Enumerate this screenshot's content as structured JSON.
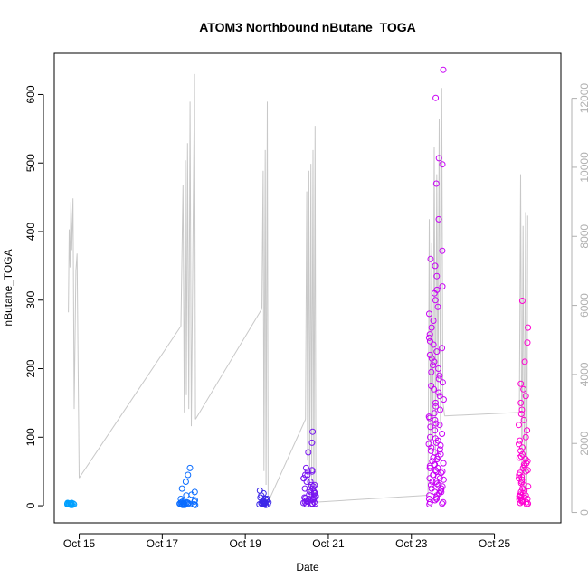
{
  "chart_data": {
    "type": "scatter",
    "title": "ATOM3 Northbound nButane_TOGA",
    "xlabel": "Date",
    "ylabel": "nButane_TOGA",
    "x_ticks": [
      {
        "label": "Oct 15",
        "day": 15
      },
      {
        "label": "Oct 17",
        "day": 17
      },
      {
        "label": "Oct 19",
        "day": 19
      },
      {
        "label": "Oct 21",
        "day": 21
      },
      {
        "label": "Oct 23",
        "day": 23
      },
      {
        "label": "Oct 25",
        "day": 25
      }
    ],
    "xlim": [
      14.4,
      26.6
    ],
    "ylim": [
      -25,
      660
    ],
    "y_ticks": [
      0,
      100,
      200,
      300,
      400,
      500,
      600
    ],
    "y2_ticks": [
      0,
      2000,
      4000,
      6000,
      8000,
      10000,
      12000
    ],
    "y2lim": [
      -300,
      13300
    ],
    "grid": false,
    "secondary_series": {
      "name": "",
      "color": "#c8c8c8",
      "segments": [
        {
          "x": [
            14.74,
            14.76,
            14.78,
            14.8,
            14.82,
            14.85,
            14.88,
            14.92,
            14.95,
            15.0
          ],
          "y": [
            5800,
            8200,
            7100,
            9000,
            7600,
            9100,
            3000,
            7000,
            7500,
            1000
          ]
        },
        {
          "x": [
            15.0,
            17.45
          ],
          "y": [
            1000,
            5400
          ]
        },
        {
          "x": [
            17.45,
            17.5,
            17.53,
            17.56,
            17.58,
            17.61,
            17.64,
            17.67,
            17.7,
            17.74,
            17.78,
            17.8
          ],
          "y": [
            5400,
            9500,
            2900,
            10200,
            3400,
            10700,
            3000,
            11900,
            2500,
            7800,
            12700,
            2700
          ]
        },
        {
          "x": [
            17.8,
            19.4
          ],
          "y": [
            2700,
            5900
          ]
        },
        {
          "x": [
            19.4,
            19.43,
            19.45,
            19.48,
            19.5,
            19.53,
            19.55
          ],
          "y": [
            5900,
            9900,
            1200,
            10500,
            800,
            11900,
            300
          ]
        },
        {
          "x": [
            19.55,
            20.45
          ],
          "y": [
            300,
            2700
          ]
        },
        {
          "x": [
            20.45,
            20.48,
            20.5,
            20.53,
            20.55,
            20.58,
            20.6,
            20.63,
            20.65,
            20.68,
            20.7
          ],
          "y": [
            2700,
            9300,
            1500,
            9900,
            400,
            10100,
            900,
            10500,
            400,
            11200,
            300
          ]
        },
        {
          "x": [
            20.7,
            23.4
          ],
          "y": [
            300,
            500
          ]
        },
        {
          "x": [
            23.4,
            23.43,
            23.46,
            23.49,
            23.52,
            23.55,
            23.58,
            23.61,
            23.64,
            23.67,
            23.7,
            23.73,
            23.76,
            23.8
          ],
          "y": [
            500,
            8500,
            1800,
            7800,
            2200,
            10600,
            1600,
            9800,
            3000,
            11400,
            2400,
            12300,
            3200,
            2800
          ]
        },
        {
          "x": [
            23.8,
            25.6
          ],
          "y": [
            2800,
            2900
          ]
        },
        {
          "x": [
            25.6,
            25.63,
            25.66,
            25.69,
            25.72,
            25.75,
            25.78,
            25.8
          ],
          "y": [
            2900,
            9800,
            800,
            8300,
            600,
            8700,
            400,
            8600
          ]
        }
      ]
    },
    "primary_series": {
      "name": "",
      "color_start": "#1e90ff",
      "color_end": "#ff00cc",
      "clusters": [
        {
          "day": 14.8,
          "spread": 0.1,
          "color": "#00a0ff",
          "points": [
            3,
            2,
            4,
            3,
            2,
            1,
            3,
            2,
            4,
            3,
            2,
            3,
            1,
            2,
            3
          ]
        },
        {
          "day": 17.6,
          "spread": 0.2,
          "color": "#0a6cff",
          "points": [
            1,
            2,
            3,
            4,
            5,
            2,
            3,
            6,
            8,
            10,
            15,
            20,
            25,
            35,
            45,
            55,
            3,
            2,
            1,
            4,
            6,
            2,
            3,
            5,
            16,
            2,
            1,
            3,
            2,
            4
          ]
        },
        {
          "day": 19.45,
          "spread": 0.12,
          "color": "#3c28e8",
          "points": [
            2,
            3,
            4,
            5,
            6,
            8,
            10,
            12,
            15,
            18,
            22,
            2,
            3,
            1,
            4,
            5,
            6,
            3,
            2,
            8,
            10,
            4,
            2,
            3
          ]
        },
        {
          "day": 20.55,
          "spread": 0.15,
          "color": "#7814f0",
          "points": [
            2,
            3,
            5,
            8,
            10,
            12,
            15,
            18,
            20,
            25,
            30,
            35,
            40,
            45,
            50,
            55,
            78,
            92,
            108,
            2,
            3,
            4,
            6,
            8,
            10,
            12,
            14,
            16,
            18,
            20,
            22,
            25,
            28,
            30,
            35,
            40,
            45,
            50,
            52,
            3,
            5,
            7,
            9,
            11
          ]
        },
        {
          "day": 23.6,
          "spread": 0.18,
          "color": "#c800f5",
          "points": [
            2,
            5,
            10,
            15,
            20,
            25,
            30,
            35,
            40,
            45,
            50,
            55,
            60,
            65,
            70,
            75,
            80,
            85,
            90,
            95,
            100,
            110,
            115,
            120,
            125,
            130,
            140,
            150,
            160,
            170,
            180,
            190,
            200,
            205,
            210,
            220,
            230,
            240,
            250,
            260,
            270,
            280,
            290,
            300,
            310,
            315,
            320,
            335,
            350,
            360,
            372,
            418,
            470,
            498,
            507,
            595,
            636,
            3,
            8,
            12,
            18,
            22,
            28,
            32,
            38,
            42,
            48,
            52,
            58,
            62,
            68,
            72,
            78,
            82,
            88,
            92,
            98,
            105,
            118,
            128,
            135,
            145,
            155,
            165,
            175,
            185,
            195,
            215,
            225,
            235,
            245,
            5,
            10,
            15,
            20,
            25,
            30,
            35,
            40,
            45,
            50,
            55,
            60
          ]
        },
        {
          "day": 25.7,
          "spread": 0.12,
          "color": "#ff00d2",
          "points": [
            2,
            4,
            6,
            8,
            10,
            12,
            14,
            16,
            18,
            20,
            25,
            30,
            35,
            40,
            45,
            50,
            55,
            60,
            65,
            70,
            75,
            80,
            85,
            90,
            95,
            100,
            110,
            118,
            125,
            134,
            140,
            150,
            160,
            170,
            178,
            210,
            238,
            260,
            299,
            3,
            5,
            7,
            9,
            11,
            13,
            15,
            22,
            28,
            33,
            38,
            42,
            48,
            52,
            58,
            62,
            68,
            72
          ]
        }
      ]
    }
  }
}
